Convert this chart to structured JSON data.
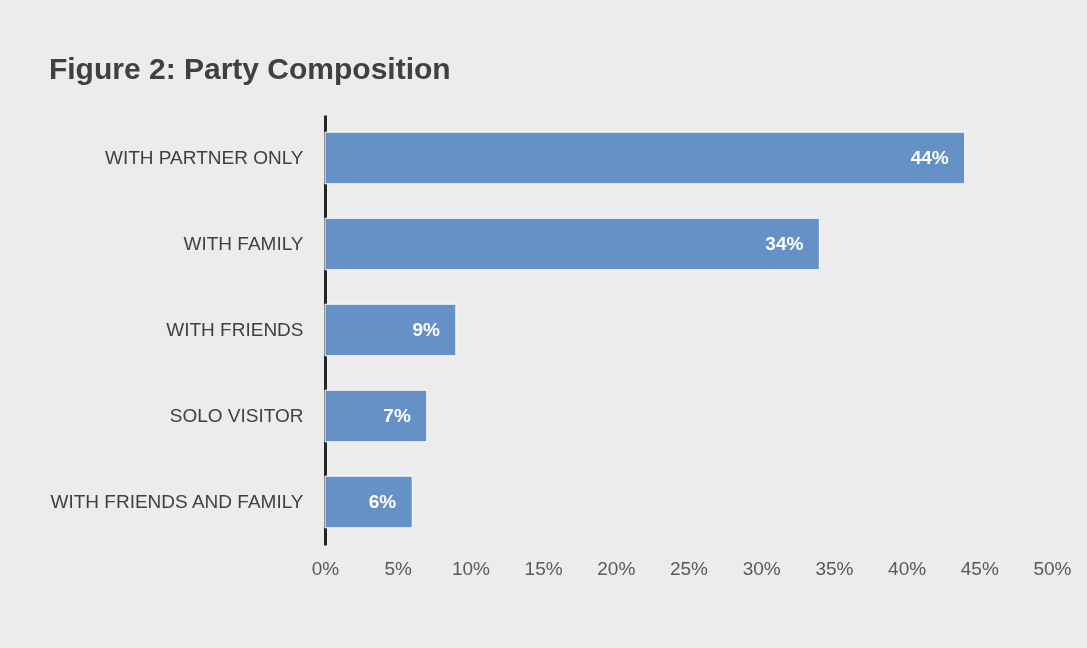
{
  "chart_data": {
    "type": "bar",
    "orientation": "horizontal",
    "title": "Figure 2: Party Composition",
    "categories": [
      "WITH PARTNER ONLY",
      "WITH FAMILY",
      "WITH FRIENDS",
      "SOLO VISITOR",
      "WITH FRIENDS AND FAMILY"
    ],
    "values": [
      44,
      34,
      9,
      7,
      6
    ],
    "color": "#6591c7",
    "value_labels": [
      "44%",
      "34%",
      "9%",
      "7%",
      "6%"
    ],
    "xlim": [
      0,
      50
    ],
    "xticks": [
      {
        "value": 0,
        "label": "0%"
      },
      {
        "value": 5,
        "label": "5%"
      },
      {
        "value": 10,
        "label": "10%"
      },
      {
        "value": 15,
        "label": "15%"
      },
      {
        "value": 20,
        "label": "20%"
      },
      {
        "value": 25,
        "label": "25%"
      },
      {
        "value": 30,
        "label": "30%"
      },
      {
        "value": 35,
        "label": "35%"
      },
      {
        "value": 40,
        "label": "40%"
      },
      {
        "value": 45,
        "label": "45%"
      },
      {
        "value": 50,
        "label": "50%"
      }
    ],
    "grid": false
  }
}
